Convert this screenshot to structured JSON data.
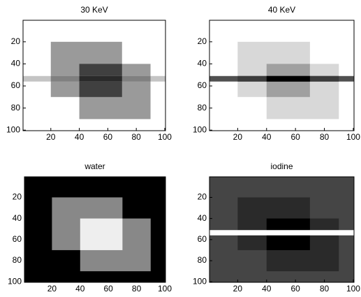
{
  "chart_data": [
    {
      "type": "image",
      "title": "30 KeV",
      "xlim": [
        0.5,
        100.5
      ],
      "ylim": [
        0.5,
        100.5
      ],
      "xticks": [
        20,
        40,
        60,
        80,
        100
      ],
      "yticks": [
        20,
        40,
        60,
        80,
        100
      ],
      "background": "#ffffff",
      "regions": [
        {
          "x": [
            20,
            70
          ],
          "y": [
            20,
            70
          ],
          "color": "#9a9a9a"
        },
        {
          "x": [
            40,
            90
          ],
          "y": [
            40,
            90
          ],
          "color": "#9a9a9a"
        },
        {
          "x": [
            40,
            70
          ],
          "y": [
            40,
            70
          ],
          "color": "#404040"
        },
        {
          "x": [
            0.5,
            100.5
          ],
          "y": [
            51,
            56
          ],
          "color": "#c4c4c4"
        },
        {
          "x": [
            20,
            90
          ],
          "y": [
            51,
            56
          ],
          "color": "#808080"
        },
        {
          "x": [
            40,
            70
          ],
          "y": [
            51,
            56
          ],
          "color": "#2a2a2a"
        }
      ]
    },
    {
      "type": "image",
      "title": "40 KeV",
      "xlim": [
        0.5,
        100.5
      ],
      "ylim": [
        0.5,
        100.5
      ],
      "xticks": [
        20,
        40,
        60,
        80,
        100
      ],
      "yticks": [
        20,
        40,
        60,
        80,
        100
      ],
      "background": "#ffffff",
      "regions": [
        {
          "x": [
            20,
            70
          ],
          "y": [
            20,
            70
          ],
          "color": "#d8d8d8"
        },
        {
          "x": [
            40,
            90
          ],
          "y": [
            40,
            90
          ],
          "color": "#d8d8d8"
        },
        {
          "x": [
            40,
            70
          ],
          "y": [
            40,
            70
          ],
          "color": "#a0a0a0"
        },
        {
          "x": [
            0.5,
            100.5
          ],
          "y": [
            51,
            56
          ],
          "color": "#505050"
        },
        {
          "x": [
            20,
            90
          ],
          "y": [
            51,
            56
          ],
          "color": "#3c3c3c"
        },
        {
          "x": [
            40,
            70
          ],
          "y": [
            51,
            56
          ],
          "color": "#000000"
        }
      ]
    },
    {
      "type": "image",
      "title": "water",
      "xlim": [
        0.5,
        100.5
      ],
      "ylim": [
        0.5,
        100.5
      ],
      "xticks": [
        20,
        40,
        60,
        80,
        100
      ],
      "yticks": [
        20,
        40,
        60,
        80,
        100
      ],
      "background": "#000000",
      "regions": [
        {
          "x": [
            20,
            70
          ],
          "y": [
            20,
            70
          ],
          "color": "#888888"
        },
        {
          "x": [
            40,
            90
          ],
          "y": [
            40,
            90
          ],
          "color": "#888888"
        },
        {
          "x": [
            40,
            70
          ],
          "y": [
            40,
            70
          ],
          "color": "#eeeeee"
        }
      ]
    },
    {
      "type": "image",
      "title": "iodine",
      "xlim": [
        0.5,
        100.5
      ],
      "ylim": [
        0.5,
        100.5
      ],
      "xticks": [
        20,
        40,
        60,
        80,
        100
      ],
      "yticks": [
        20,
        40,
        60,
        80,
        100
      ],
      "background": "#454545",
      "regions": [
        {
          "x": [
            20,
            70
          ],
          "y": [
            20,
            70
          ],
          "color": "#2a2a2a"
        },
        {
          "x": [
            40,
            90
          ],
          "y": [
            40,
            90
          ],
          "color": "#2a2a2a"
        },
        {
          "x": [
            40,
            70
          ],
          "y": [
            40,
            70
          ],
          "color": "#000000"
        },
        {
          "x": [
            0.5,
            100.5
          ],
          "y": [
            51,
            56
          ],
          "color": "#ffffff"
        }
      ]
    }
  ]
}
